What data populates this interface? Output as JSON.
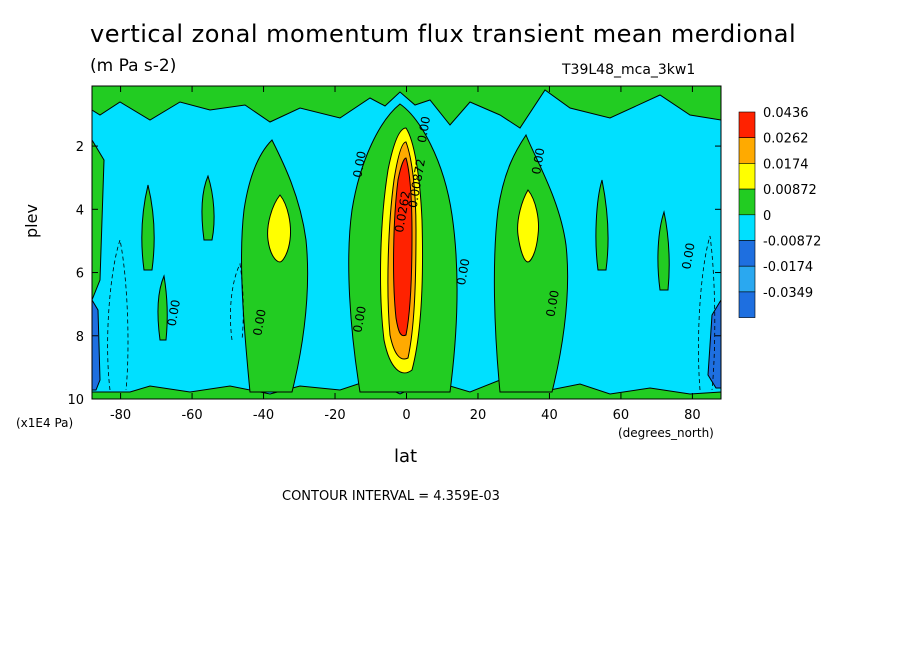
{
  "title": "vertical zonal momentum flux transient mean merdional",
  "units": "(m Pa s-2)",
  "run_id": "T39L48_mca_3kw1",
  "x_axis": {
    "label": "lat",
    "unit": "(degrees_north)"
  },
  "y_axis": {
    "label": "plev",
    "unit": "(x1E4 Pa)"
  },
  "contour_interval": "CONTOUR INTERVAL = 4.359E-03",
  "colors": {
    "background_field": "#00e0ff",
    "c_neg3": "#1e6fe0",
    "c_neg2": "#2aa8f0",
    "c_neg1": "#00e0ff",
    "c_0": "#22cc22",
    "c_1": "#ffff00",
    "c_2": "#ffaa00",
    "c_3": "#ff2200"
  },
  "chart_data": {
    "type": "heatmap",
    "title": "vertical zonal momentum flux transient mean merdional",
    "subtitle": "(m Pa s-2)",
    "xlabel": "lat",
    "ylabel": "plev",
    "xlim": [
      -88,
      88
    ],
    "ylim": [
      10,
      0.1
    ],
    "x_ticks": [
      -80,
      -60,
      -40,
      -20,
      0,
      20,
      40,
      60,
      80
    ],
    "x_tick_labels": [
      "-80",
      "-60",
      "-40",
      "-20",
      "0",
      "20",
      "40",
      "60",
      "80"
    ],
    "y_ticks": [
      2,
      4,
      6,
      8,
      10
    ],
    "y_tick_labels": [
      "2",
      "4",
      "6",
      "8",
      "10"
    ],
    "legend": {
      "placement": "right",
      "levels": [
        "0.0436",
        "0.0262",
        "0.0174",
        "0.00872",
        "0",
        "-0.00872",
        "-0.0174",
        "-0.0349"
      ],
      "colors": [
        "#ff2200",
        "#ffaa00",
        "#ffff00",
        "#22cc22",
        "#00e0ff",
        "#1e6fe0",
        "#2aa8f0",
        "#1e6fe0"
      ]
    },
    "contour_labels": [
      {
        "text": "0.00",
        "x": 6,
        "y": 1.5
      },
      {
        "text": "0.00",
        "x": -12,
        "y": 2.6
      },
      {
        "text": "0.00",
        "x": 38,
        "y": 2.5
      },
      {
        "text": "0.00872",
        "x": 4,
        "y": 3.2
      },
      {
        "text": "0.0262",
        "x": 0,
        "y": 4.1
      },
      {
        "text": "0.00",
        "x": 17,
        "y": 6.0
      },
      {
        "text": "0.00",
        "x": 80,
        "y": 5.5
      },
      {
        "text": "0.00",
        "x": -64,
        "y": 7.3
      },
      {
        "text": "0.00",
        "x": -40,
        "y": 7.6
      },
      {
        "text": "0.00",
        "x": -12,
        "y": 7.5
      },
      {
        "text": "0.00",
        "x": 42,
        "y": 7.0
      }
    ],
    "features": [
      {
        "name": "equatorial maximum",
        "lat": 0,
        "plev_range": [
          2.5,
          7.8
        ],
        "value": 0.0436
      },
      {
        "name": "southern yellow core",
        "lat": -35,
        "plev_range": [
          3.5,
          5.5
        ],
        "value": 0.00872
      },
      {
        "name": "northern yellow core",
        "lat": 35,
        "plev_range": [
          3.5,
          5.5
        ],
        "value": 0.00872
      },
      {
        "name": "southern polar minimum",
        "lat": -86,
        "plev_range": [
          7,
          9.8
        ],
        "value": -0.0174
      },
      {
        "name": "northern polar minimum",
        "lat": 86,
        "plev_range": [
          7,
          9.7
        ],
        "value": -0.0349
      }
    ]
  }
}
